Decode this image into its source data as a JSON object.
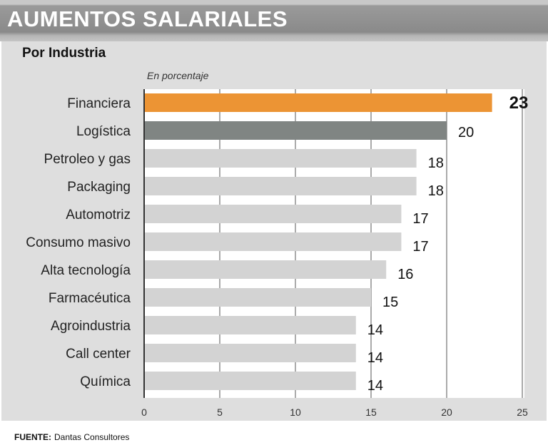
{
  "header": {
    "title": "AUMENTOS SALARIALES"
  },
  "source": {
    "label": "FUENTE:",
    "text": "Dantas Consultores"
  },
  "colors": {
    "highlight": "#ec9434",
    "second": "#808583",
    "default": "#d3d3d3"
  },
  "chart_data": {
    "type": "bar",
    "orientation": "horizontal",
    "title": "AUMENTOS SALARIALES",
    "subtitle": "Por Industria",
    "xlabel": "En porcentaje",
    "ylabel": "",
    "xlim": [
      0,
      25
    ],
    "xticks": [
      0,
      5,
      10,
      15,
      20,
      25
    ],
    "grid": true,
    "categories": [
      "Financiera",
      "Logística",
      "Petroleo y gas",
      "Packaging",
      "Automotriz",
      "Consumo masivo",
      "Alta tecnología",
      "Farmacéutica",
      "Agroindustria",
      "Call center",
      "Química"
    ],
    "values": [
      23,
      20,
      18,
      18,
      17,
      17,
      16,
      15,
      14,
      14,
      14
    ]
  }
}
